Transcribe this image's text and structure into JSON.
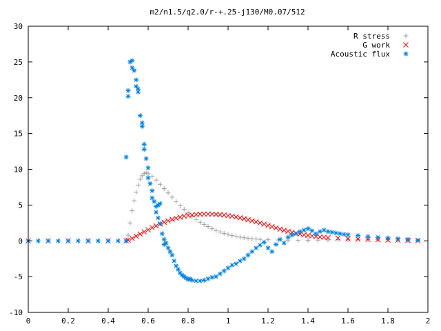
{
  "chart_data": {
    "type": "scatter",
    "title": "m2/n1.5/q2.0/r-+.25-j130/M0.07/512",
    "xlabel": "",
    "ylabel": "",
    "xlim": [
      0,
      2
    ],
    "ylim": [
      -10,
      30
    ],
    "x_ticks": [
      "0",
      "0.2",
      "0.4",
      "0.6",
      "0.8",
      "1",
      "1.2",
      "1.4",
      "1.6",
      "1.8",
      "2"
    ],
    "y_ticks": [
      "-10",
      "-5",
      "0",
      "5",
      "10",
      "15",
      "20",
      "25",
      "30"
    ],
    "grid": false,
    "legend_position": "top-right",
    "series": [
      {
        "name": "R stress",
        "marker": "plus",
        "color": "#a0a0a0",
        "points": [
          [
            0.0,
            0
          ],
          [
            0.1,
            0
          ],
          [
            0.2,
            0
          ],
          [
            0.3,
            0
          ],
          [
            0.4,
            0
          ],
          [
            0.49,
            0
          ],
          [
            0.5,
            0.8
          ],
          [
            0.51,
            2.5
          ],
          [
            0.52,
            4.2
          ],
          [
            0.53,
            5.6
          ],
          [
            0.54,
            6.8
          ],
          [
            0.55,
            7.8
          ],
          [
            0.56,
            8.6
          ],
          [
            0.57,
            9.1
          ],
          [
            0.58,
            9.4
          ],
          [
            0.59,
            9.5
          ],
          [
            0.6,
            9.4
          ],
          [
            0.62,
            9.0
          ],
          [
            0.64,
            8.5
          ],
          [
            0.66,
            7.9
          ],
          [
            0.68,
            7.3
          ],
          [
            0.7,
            6.7
          ],
          [
            0.72,
            6.1
          ],
          [
            0.74,
            5.5
          ],
          [
            0.76,
            4.9
          ],
          [
            0.78,
            4.4
          ],
          [
            0.8,
            3.9
          ],
          [
            0.82,
            3.4
          ],
          [
            0.84,
            3.0
          ],
          [
            0.86,
            2.6
          ],
          [
            0.88,
            2.3
          ],
          [
            0.9,
            2.0
          ],
          [
            0.92,
            1.7
          ],
          [
            0.94,
            1.45
          ],
          [
            0.96,
            1.25
          ],
          [
            0.98,
            1.05
          ],
          [
            1.0,
            0.9
          ],
          [
            1.02,
            0.75
          ],
          [
            1.04,
            0.62
          ],
          [
            1.06,
            0.52
          ],
          [
            1.08,
            0.43
          ],
          [
            1.1,
            0.36
          ],
          [
            1.12,
            0.3
          ],
          [
            1.14,
            0.25
          ],
          [
            1.16,
            0.21
          ],
          [
            1.2,
            0.16
          ],
          [
            1.25,
            0.12
          ],
          [
            1.3,
            0.1
          ],
          [
            1.35,
            0.09
          ],
          [
            1.4,
            0.09
          ],
          [
            1.45,
            0.1
          ],
          [
            1.5,
            0.12
          ],
          [
            1.55,
            0.14
          ],
          [
            1.6,
            0.16
          ],
          [
            1.65,
            0.17
          ],
          [
            1.7,
            0.17
          ],
          [
            1.75,
            0.16
          ],
          [
            1.8,
            0.14
          ],
          [
            1.85,
            0.11
          ],
          [
            1.9,
            0.08
          ],
          [
            1.95,
            0.05
          ]
        ]
      },
      {
        "name": "G work",
        "marker": "cross",
        "color": "#ff0000",
        "points": [
          [
            0.0,
            0
          ],
          [
            0.1,
            0
          ],
          [
            0.2,
            0
          ],
          [
            0.3,
            0
          ],
          [
            0.4,
            0
          ],
          [
            0.49,
            0
          ],
          [
            0.5,
            0.1
          ],
          [
            0.52,
            0.35
          ],
          [
            0.54,
            0.65
          ],
          [
            0.56,
            0.95
          ],
          [
            0.58,
            1.25
          ],
          [
            0.6,
            1.55
          ],
          [
            0.62,
            1.85
          ],
          [
            0.64,
            2.1
          ],
          [
            0.66,
            2.35
          ],
          [
            0.68,
            2.6
          ],
          [
            0.7,
            2.8
          ],
          [
            0.72,
            3.0
          ],
          [
            0.74,
            3.15
          ],
          [
            0.76,
            3.3
          ],
          [
            0.78,
            3.45
          ],
          [
            0.8,
            3.55
          ],
          [
            0.82,
            3.62
          ],
          [
            0.84,
            3.68
          ],
          [
            0.86,
            3.72
          ],
          [
            0.88,
            3.74
          ],
          [
            0.9,
            3.74
          ],
          [
            0.92,
            3.73
          ],
          [
            0.94,
            3.7
          ],
          [
            0.96,
            3.66
          ],
          [
            0.98,
            3.6
          ],
          [
            1.0,
            3.52
          ],
          [
            1.02,
            3.44
          ],
          [
            1.04,
            3.34
          ],
          [
            1.06,
            3.22
          ],
          [
            1.08,
            3.1
          ],
          [
            1.1,
            2.95
          ],
          [
            1.12,
            2.8
          ],
          [
            1.14,
            2.65
          ],
          [
            1.16,
            2.5
          ],
          [
            1.18,
            2.33
          ],
          [
            1.2,
            2.15
          ],
          [
            1.22,
            1.98
          ],
          [
            1.24,
            1.8
          ],
          [
            1.26,
            1.63
          ],
          [
            1.28,
            1.47
          ],
          [
            1.3,
            1.32
          ],
          [
            1.32,
            1.18
          ],
          [
            1.34,
            1.06
          ],
          [
            1.36,
            0.95
          ],
          [
            1.38,
            0.85
          ],
          [
            1.4,
            0.76
          ],
          [
            1.42,
            0.68
          ],
          [
            1.44,
            0.61
          ],
          [
            1.46,
            0.55
          ],
          [
            1.48,
            0.5
          ],
          [
            1.5,
            0.45
          ],
          [
            1.55,
            0.37
          ],
          [
            1.6,
            0.3
          ],
          [
            1.65,
            0.25
          ],
          [
            1.7,
            0.2
          ],
          [
            1.75,
            0.16
          ],
          [
            1.8,
            0.12
          ],
          [
            1.85,
            0.09
          ],
          [
            1.9,
            0.06
          ],
          [
            1.95,
            0.03
          ]
        ]
      },
      {
        "name": "Acoustic flux",
        "marker": "star",
        "color": "#0080e0",
        "points": [
          [
            0.0,
            0
          ],
          [
            0.05,
            0
          ],
          [
            0.1,
            0
          ],
          [
            0.15,
            0
          ],
          [
            0.2,
            0
          ],
          [
            0.25,
            0
          ],
          [
            0.3,
            0
          ],
          [
            0.35,
            0
          ],
          [
            0.4,
            0
          ],
          [
            0.45,
            0
          ],
          [
            0.49,
            0
          ],
          [
            0.49,
            11.7
          ],
          [
            0.5,
            20.2
          ],
          [
            0.5,
            21.0
          ],
          [
            0.51,
            25.0
          ],
          [
            0.52,
            25.2
          ],
          [
            0.52,
            24.2
          ],
          [
            0.53,
            23.8
          ],
          [
            0.54,
            22.5
          ],
          [
            0.54,
            21.6
          ],
          [
            0.55,
            20.8
          ],
          [
            0.55,
            21.2
          ],
          [
            0.56,
            17.5
          ],
          [
            0.57,
            16.5
          ],
          [
            0.57,
            16.0
          ],
          [
            0.58,
            13.5
          ],
          [
            0.58,
            12.8
          ],
          [
            0.59,
            11.5
          ],
          [
            0.6,
            10.2
          ],
          [
            0.6,
            8.8
          ],
          [
            0.61,
            8.0
          ],
          [
            0.62,
            7.0
          ],
          [
            0.62,
            6.0
          ],
          [
            0.63,
            5.5
          ],
          [
            0.64,
            4.8
          ],
          [
            0.64,
            4.0
          ],
          [
            0.65,
            3.2
          ],
          [
            0.65,
            5.0
          ],
          [
            0.66,
            2.4
          ],
          [
            0.66,
            5.2
          ],
          [
            0.67,
            1.0
          ],
          [
            0.68,
            0.2
          ],
          [
            0.68,
            -0.5
          ],
          [
            0.69,
            -0.3
          ],
          [
            0.7,
            -1.0
          ],
          [
            0.71,
            -1.5
          ],
          [
            0.72,
            -2.0
          ],
          [
            0.73,
            -2.8
          ],
          [
            0.74,
            -3.5
          ],
          [
            0.75,
            -4.0
          ],
          [
            0.76,
            -4.5
          ],
          [
            0.77,
            -4.8
          ],
          [
            0.78,
            -5.0
          ],
          [
            0.79,
            -5.2
          ],
          [
            0.8,
            -5.4
          ],
          [
            0.81,
            -5.3
          ],
          [
            0.82,
            -5.5
          ],
          [
            0.84,
            -5.6
          ],
          [
            0.86,
            -5.6
          ],
          [
            0.88,
            -5.5
          ],
          [
            0.9,
            -5.3
          ],
          [
            0.92,
            -5.1
          ],
          [
            0.94,
            -5.0
          ],
          [
            0.96,
            -4.6
          ],
          [
            0.98,
            -4.2
          ],
          [
            1.0,
            -3.8
          ],
          [
            1.02,
            -3.4
          ],
          [
            1.04,
            -3.2
          ],
          [
            1.06,
            -2.8
          ],
          [
            1.08,
            -2.5
          ],
          [
            1.1,
            -2.0
          ],
          [
            1.12,
            -1.5
          ],
          [
            1.14,
            -1.0
          ],
          [
            1.16,
            -0.6
          ],
          [
            1.18,
            -0.2
          ],
          [
            1.2,
            -1.0
          ],
          [
            1.22,
            -1.5
          ],
          [
            1.24,
            -0.5
          ],
          [
            1.26,
            0.2
          ],
          [
            1.28,
            -0.3
          ],
          [
            1.3,
            0.5
          ],
          [
            1.32,
            0.8
          ],
          [
            1.34,
            1.0
          ],
          [
            1.36,
            1.3
          ],
          [
            1.38,
            1.5
          ],
          [
            1.4,
            1.7
          ],
          [
            1.42,
            1.4
          ],
          [
            1.44,
            1.0
          ],
          [
            1.46,
            1.3
          ],
          [
            1.48,
            1.5
          ],
          [
            1.5,
            1.3
          ],
          [
            1.52,
            1.2
          ],
          [
            1.54,
            1.1
          ],
          [
            1.56,
            1.0
          ],
          [
            1.58,
            0.9
          ],
          [
            1.6,
            0.85
          ],
          [
            1.65,
            0.75
          ],
          [
            1.7,
            0.6
          ],
          [
            1.75,
            0.5
          ],
          [
            1.8,
            0.4
          ],
          [
            1.85,
            0.3
          ],
          [
            1.9,
            0.2
          ],
          [
            1.95,
            0.1
          ]
        ]
      }
    ]
  }
}
